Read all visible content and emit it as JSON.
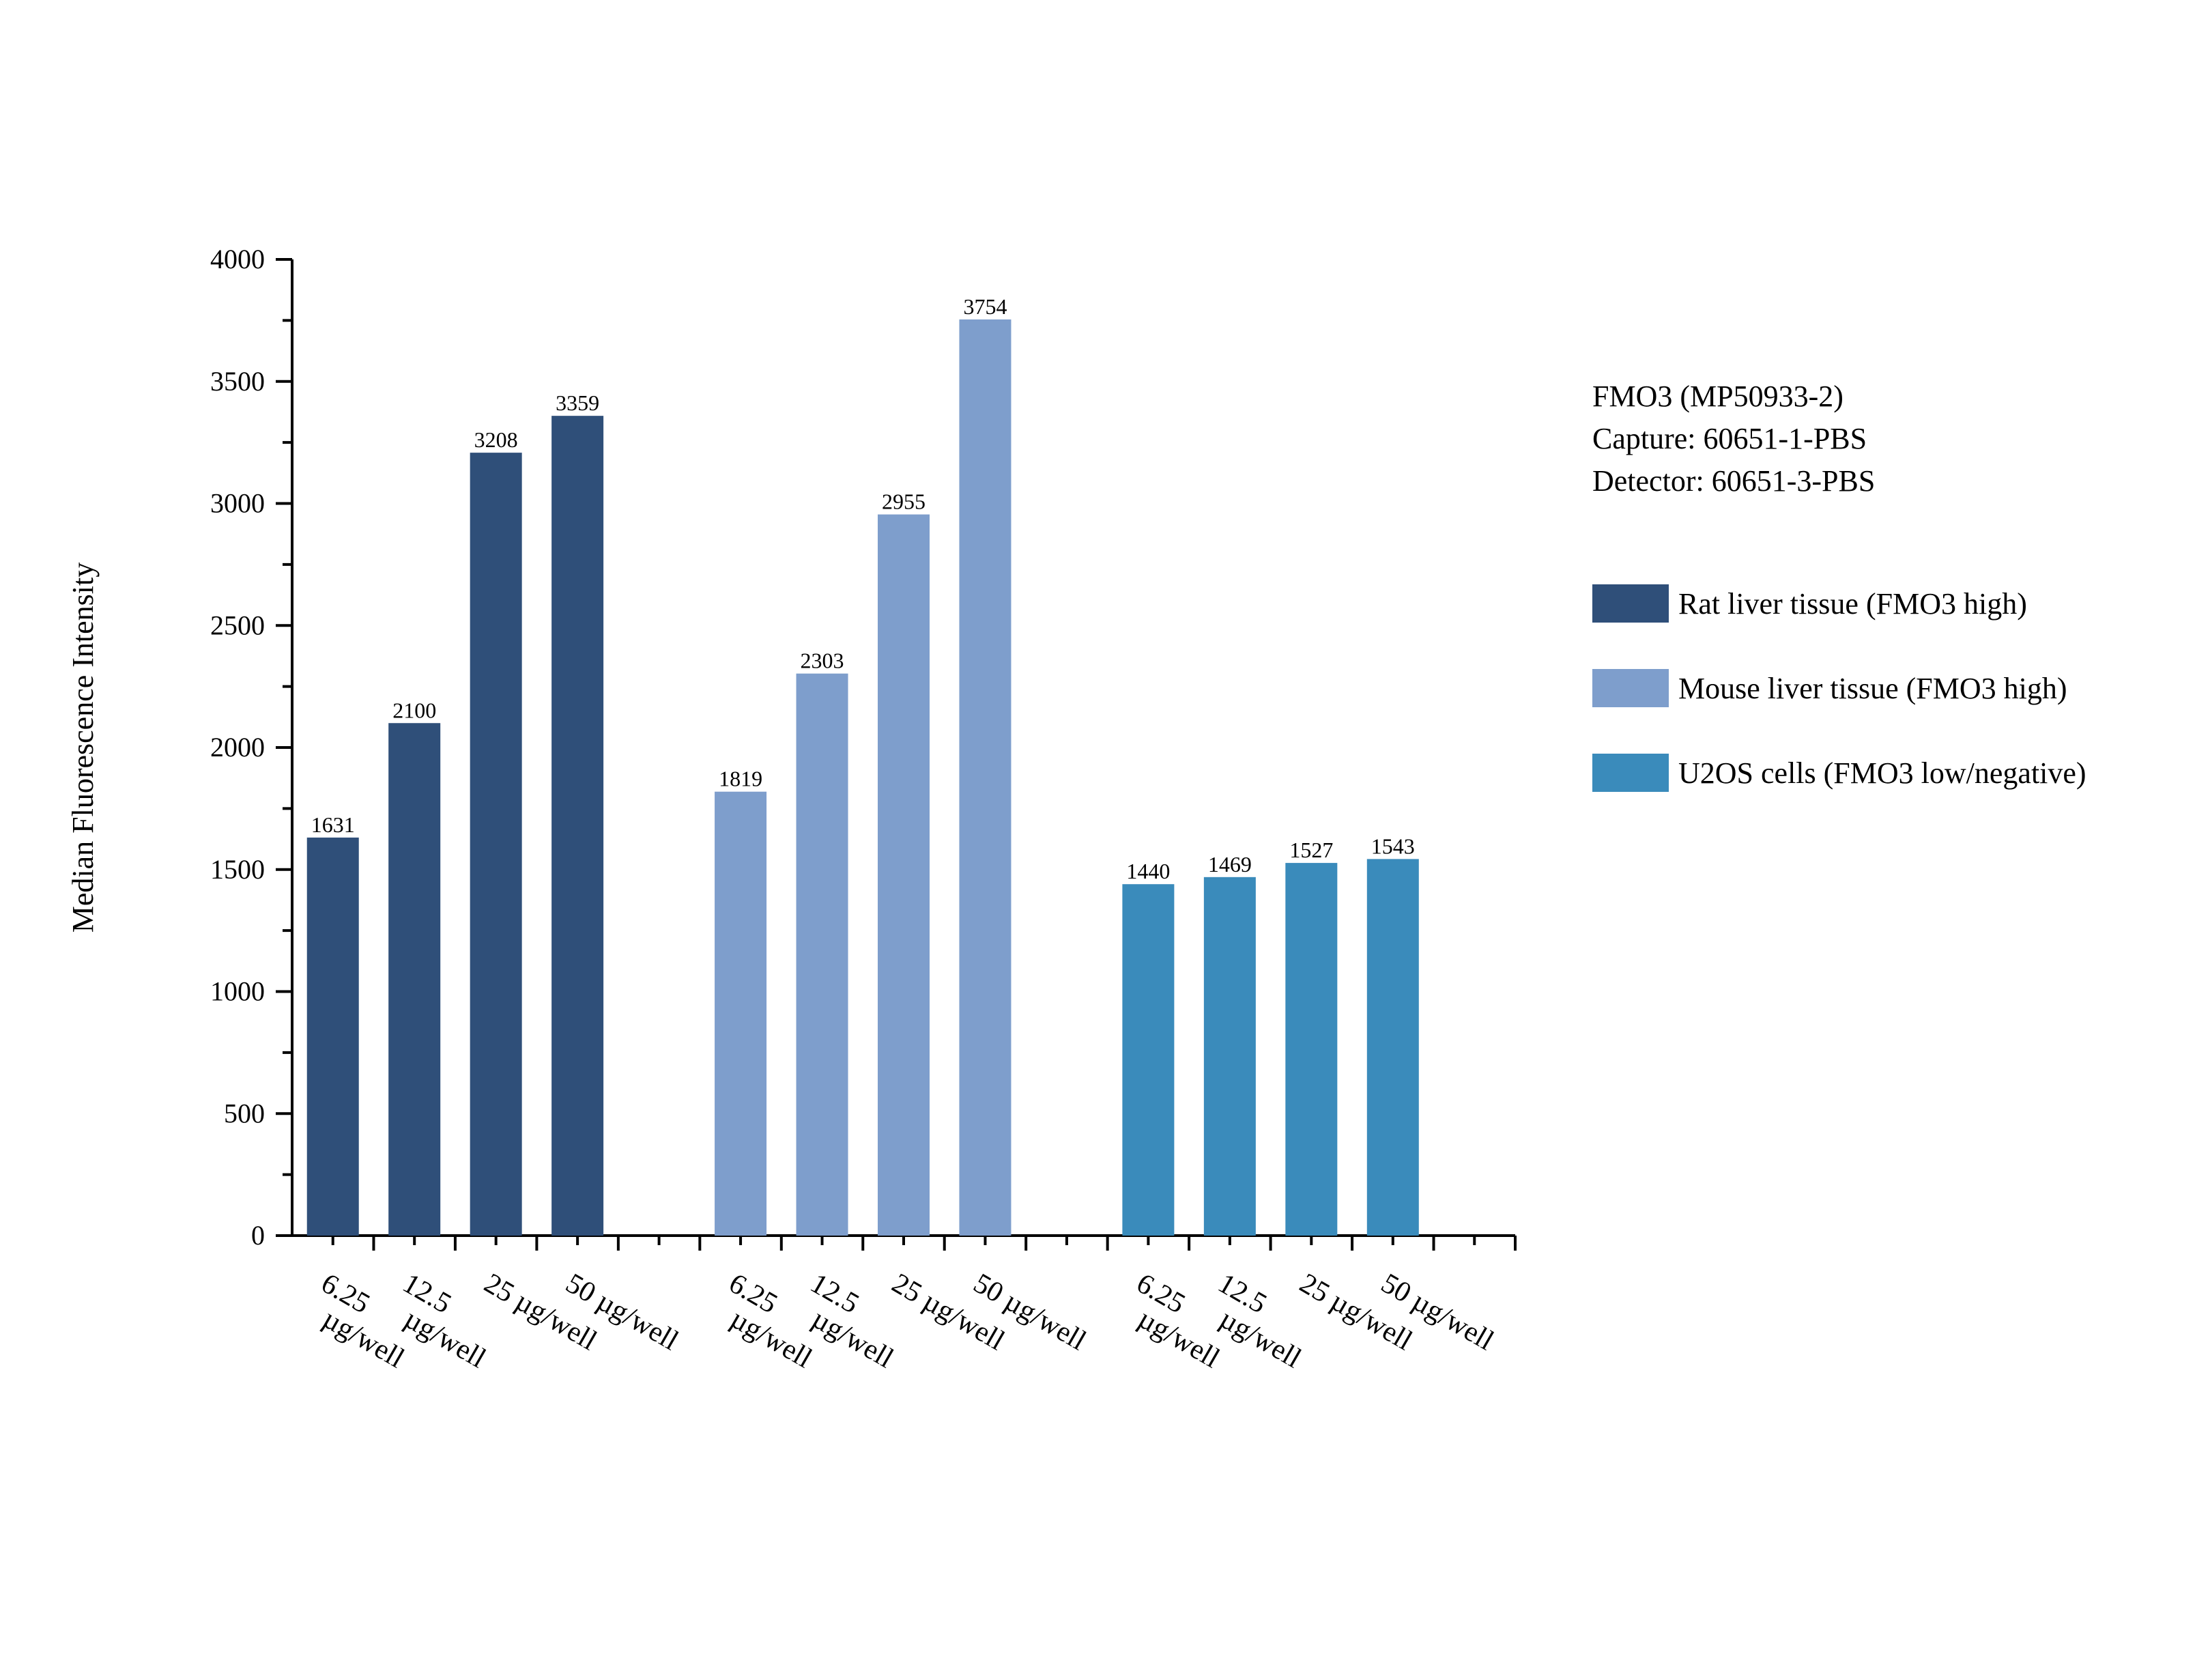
{
  "chart_data": {
    "type": "bar",
    "title": "",
    "xlabel": "",
    "ylabel": "Median Fluorescence Intensity",
    "ylim": [
      0,
      4000
    ],
    "yticks": [
      "0",
      "500",
      "1000",
      "1500",
      "2000",
      "2500",
      "3000",
      "3500",
      "4000"
    ],
    "categories": [
      "6.25 µg/well",
      "12.5 µg/well",
      "25 µg/well",
      "50 µg/well"
    ],
    "legend_title_lines": [
      "FMO3 (MP50933-2)",
      "Capture: 60651-1-PBS",
      "Detector: 60651-3-PBS"
    ],
    "legend_position": "right",
    "series": [
      {
        "name": "Rat liver tissue (FMO3 high)",
        "color": "#2f4f79",
        "values": [
          1631,
          2100,
          3208,
          3359
        ]
      },
      {
        "name": "Mouse liver tissue (FMO3 high)",
        "color": "#7e9ecc",
        "values": [
          1819,
          2303,
          2955,
          3754
        ]
      },
      {
        "name": "U2OS cells (FMO3 low/negative)",
        "color": "#3a8bbb",
        "values": [
          1440,
          1469,
          1527,
          1543
        ]
      }
    ]
  }
}
